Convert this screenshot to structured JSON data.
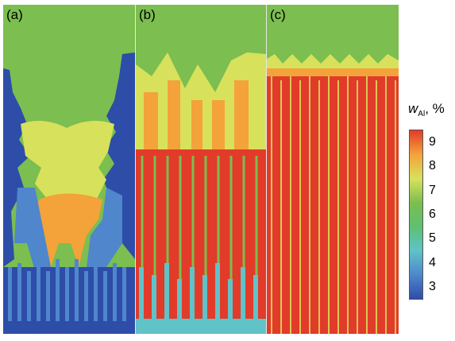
{
  "panels": [
    {
      "label": "(a)"
    },
    {
      "label": "(b)"
    },
    {
      "label": "(c)"
    }
  ],
  "colorbar": {
    "title_symbol": "w",
    "title_subscript": "Al",
    "title_unit": ", %",
    "ticks": [
      "9",
      "8",
      "7",
      "6",
      "5",
      "4",
      "3"
    ],
    "colors": [
      "#e23b2a",
      "#f4a23a",
      "#d8e15c",
      "#7cbe4f",
      "#5ec072",
      "#5fc3c8",
      "#4f86cc",
      "#2d4da8"
    ]
  },
  "palette": {
    "blue": "#2d4da8",
    "mid_blue": "#4f86cc",
    "cyan": "#5fc3c8",
    "green": "#7cbe4f",
    "yellow": "#d8e15c",
    "orange": "#f4a23a",
    "red": "#e23b2a"
  }
}
